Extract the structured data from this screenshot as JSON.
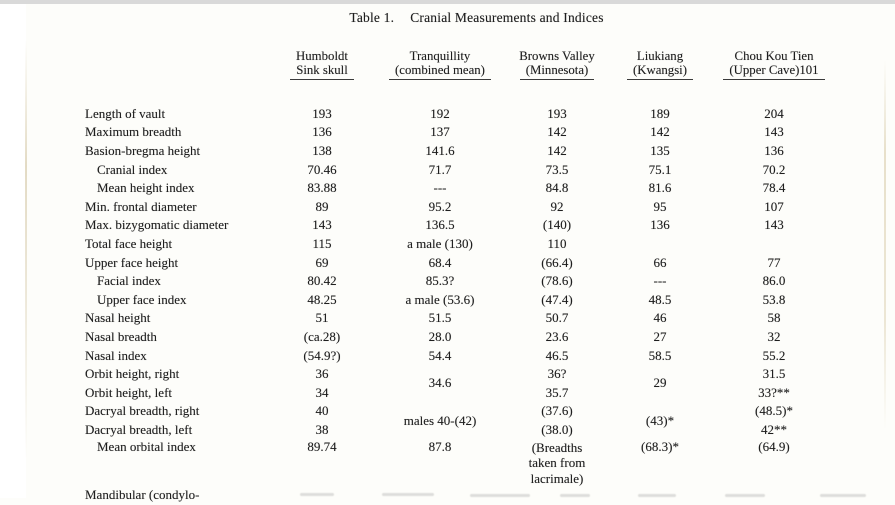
{
  "colors": {
    "paper": "#fdfdfa",
    "ink": "#1e1e1e",
    "top_strip": "#d9d9d9"
  },
  "title": {
    "prefix": "Table 1.",
    "text": "Cranial Measurements and Indices"
  },
  "table": {
    "columns": [
      {
        "line1": "Humboldt",
        "line2": "Sink skull"
      },
      {
        "line1": "Tranquillity",
        "line2": "(combined mean)"
      },
      {
        "line1": "Browns Valley",
        "line2": "(Minnesota)"
      },
      {
        "line1": "Liukiang",
        "line2": "(Kwangsi)"
      },
      {
        "line1": "Chou Kou Tien",
        "line2": "(Upper Cave)101"
      }
    ],
    "rows": [
      {
        "label": "Length of vault",
        "indent": false,
        "values": [
          "193",
          "192",
          "193",
          "189",
          "204"
        ]
      },
      {
        "label": "Maximum breadth",
        "indent": false,
        "values": [
          "136",
          "137",
          "142",
          "142",
          "143"
        ]
      },
      {
        "label": "Basion-bregma height",
        "indent": false,
        "values": [
          "138",
          "141.6",
          "142",
          "135",
          "136"
        ]
      },
      {
        "label": "Cranial index",
        "indent": true,
        "values": [
          "70.46",
          "71.7",
          "73.5",
          "75.1",
          "70.2"
        ]
      },
      {
        "label": "Mean height index",
        "indent": true,
        "values": [
          "83.88",
          "---",
          "84.8",
          "81.6",
          "78.4"
        ]
      },
      {
        "label": "Min. frontal diameter",
        "indent": false,
        "values": [
          "89",
          "95.2",
          "92",
          "95",
          "107"
        ]
      },
      {
        "label": "Max. bizygomatic diameter",
        "indent": false,
        "values": [
          "143",
          "136.5",
          "(140)",
          "136",
          "143"
        ]
      },
      {
        "label": "Total face height",
        "indent": false,
        "values": [
          "115",
          "a male (130)",
          "110",
          "",
          ""
        ]
      },
      {
        "label": "Upper face height",
        "indent": false,
        "values": [
          "69",
          "68.4",
          "(66.4)",
          "66",
          "77"
        ]
      },
      {
        "label": "Facial index",
        "indent": true,
        "values": [
          "80.42",
          "85.3?",
          "(78.6)",
          "---",
          "86.0"
        ]
      },
      {
        "label": "Upper face index",
        "indent": true,
        "values": [
          "48.25",
          "a male (53.6)",
          "(47.4)",
          "48.5",
          "53.8"
        ]
      },
      {
        "label": "Nasal height",
        "indent": false,
        "values": [
          "51",
          "51.5",
          "50.7",
          "46",
          "58"
        ]
      },
      {
        "label": "Nasal breadth",
        "indent": false,
        "values": [
          "(ca.28)",
          "28.0",
          "23.6",
          "27",
          "32"
        ]
      },
      {
        "label": "Nasal index",
        "indent": false,
        "values": [
          "(54.9?)",
          "54.4",
          "46.5",
          "58.5",
          "55.2"
        ]
      },
      {
        "label": "Orbit height, right",
        "indent": false,
        "values": [
          "36",
          "34.6",
          "36?",
          "29",
          "31.5"
        ],
        "span2": [
          1,
          3
        ]
      },
      {
        "label": "Orbit height, left",
        "indent": false,
        "values": [
          "34",
          "",
          "35.7",
          "",
          "33?**"
        ],
        "skip": [
          1,
          3
        ]
      },
      {
        "label": "Dacryal breadth, right",
        "indent": false,
        "values": [
          "40",
          "males 40-(42)",
          "(37.6)",
          "(43)*",
          "(48.5)*"
        ],
        "span2": [
          1,
          3
        ]
      },
      {
        "label": "Dacryal breadth, left",
        "indent": false,
        "values": [
          "38",
          "",
          "(38.0)",
          "",
          "42**"
        ],
        "skip": [
          1,
          3
        ]
      },
      {
        "label": "Mean orbital index",
        "indent": true,
        "values": [
          "89.74",
          "87.8",
          "",
          "(68.3)*",
          "(64.9)"
        ],
        "note_col": 2,
        "note_lines": [
          "(Breadths",
          "taken from",
          "lacrimale)"
        ],
        "tall": true
      },
      {
        "label": "Mandibular (condylo-",
        "indent": false,
        "values": [
          "",
          "",
          "",
          "",
          ""
        ]
      }
    ]
  }
}
